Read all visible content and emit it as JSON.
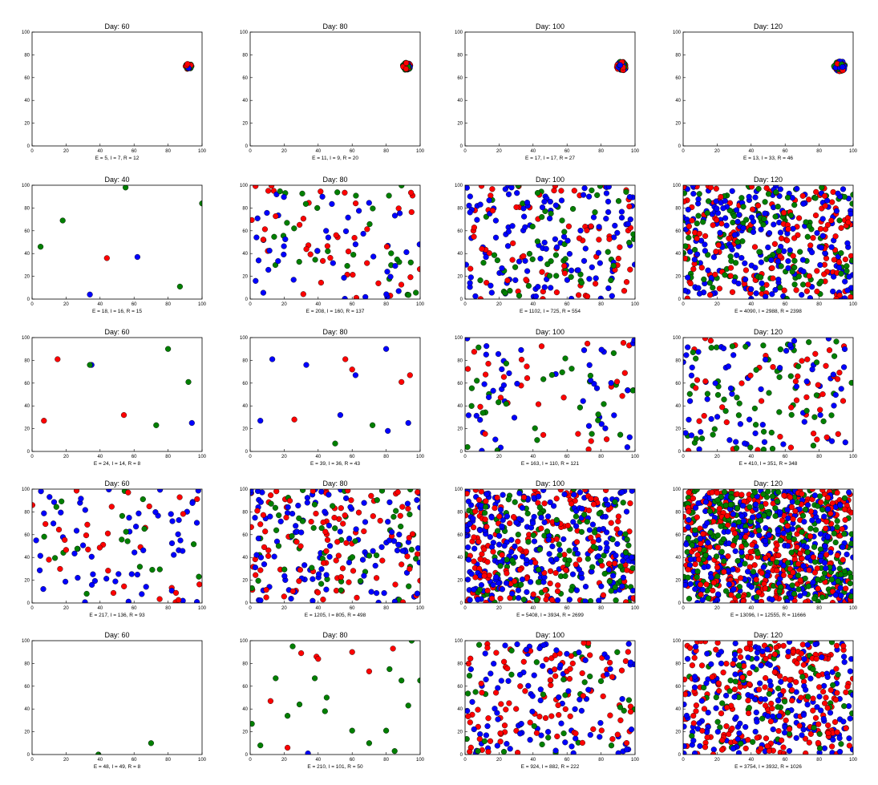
{
  "colors": {
    "exposed": "#0000ff",
    "infected": "#ff0000",
    "recovered": "#007f00",
    "axes": "#000000",
    "background": "#ffffff"
  },
  "chart_data": {
    "type": "scatter",
    "xlim": [
      0,
      100
    ],
    "ylim": [
      0,
      100
    ],
    "x_ticks": [
      0,
      20,
      40,
      60,
      80,
      100
    ],
    "y_ticks": [
      0,
      20,
      40,
      60,
      80,
      100
    ],
    "grid": false,
    "panels": [
      {
        "title": "Day: 60",
        "caption": "E = 5, I = 7, R = 12",
        "counts": {
          "E": 5,
          "I": 7,
          "R": 12
        },
        "density": "tight cluster at (92, 70)"
      },
      {
        "title": "Day: 80",
        "caption": "E = 11, I = 9, R = 20",
        "counts": {
          "E": 11,
          "I": 9,
          "R": 20
        },
        "density": "tight cluster at (92, 70)"
      },
      {
        "title": "Day: 100",
        "caption": "E = 17, I = 17, R = 27",
        "counts": {
          "E": 17,
          "I": 17,
          "R": 27
        },
        "density": "tight cluster at (92, 70)"
      },
      {
        "title": "Day: 120",
        "caption": "E = 13, I = 33, R = 46",
        "counts": {
          "E": 13,
          "I": 33,
          "R": 46
        },
        "density": "tight cluster at (93, 70)"
      },
      {
        "title": "Day: 40",
        "caption": "E = 18, I = 16, R = 15",
        "counts": {
          "E": 18,
          "I": 16,
          "R": 15
        }
      },
      {
        "title": "Day: 80",
        "caption": "E = 208, I = 160, R = 137",
        "counts": {
          "E": 208,
          "I": 160,
          "R": 137
        }
      },
      {
        "title": "Day: 100",
        "caption": "E = 1102, I = 725, R = 554",
        "counts": {
          "E": 1102,
          "I": 725,
          "R": 554
        }
      },
      {
        "title": "Day: 120",
        "caption": "E = 4090, I = 2988, R = 2398",
        "counts": {
          "E": 4090,
          "I": 2988,
          "R": 2398
        }
      },
      {
        "title": "Day: 60",
        "caption": "E = 24, I = 14, R = 8",
        "counts": {
          "E": 24,
          "I": 14,
          "R": 8
        }
      },
      {
        "title": "Day: 80",
        "caption": "E = 39, I = 36, R = 43",
        "counts": {
          "E": 39,
          "I": 36,
          "R": 43
        }
      },
      {
        "title": "Day: 100",
        "caption": "E = 163, I = 110, R = 121",
        "counts": {
          "E": 163,
          "I": 110,
          "R": 121
        }
      },
      {
        "title": "Day: 120",
        "caption": "E = 410, I = 351, R = 348",
        "counts": {
          "E": 410,
          "I": 351,
          "R": 348
        }
      },
      {
        "title": "Day: 60",
        "caption": "E = 217, I = 136, R = 93",
        "counts": {
          "E": 217,
          "I": 136,
          "R": 93
        }
      },
      {
        "title": "Day: 80",
        "caption": "E = 1205, I = 805, R = 498",
        "counts": {
          "E": 1205,
          "I": 805,
          "R": 498
        }
      },
      {
        "title": "Day: 100",
        "caption": "E = 5408, I = 3934, R = 2699",
        "counts": {
          "E": 5408,
          "I": 3934,
          "R": 2699
        }
      },
      {
        "title": "Day: 120",
        "caption": "E = 13096, I = 12555, R = 11666",
        "counts": {
          "E": 13096,
          "I": 12555,
          "R": 11666
        }
      },
      {
        "title": "Day: 60",
        "caption": "E = 48, I = 49, R = 8",
        "counts": {
          "E": 48,
          "I": 49,
          "R": 8
        }
      },
      {
        "title": "Day: 80",
        "caption": "E = 210, I = 101, R = 50",
        "counts": {
          "E": 210,
          "I": 101,
          "R": 50
        }
      },
      {
        "title": "Day: 100",
        "caption": "E = 924, I = 882, R = 222",
        "counts": {
          "E": 924,
          "I": 882,
          "R": 222
        }
      },
      {
        "title": "Day: 120",
        "caption": "E = 3754, I = 3932, R = 1026",
        "counts": {
          "E": 3754,
          "I": 3932,
          "R": 1026
        }
      }
    ],
    "points": {
      "4": [
        {
          "x": 5,
          "y": 46,
          "c": "recovered"
        },
        {
          "x": 18,
          "y": 69,
          "c": "recovered"
        },
        {
          "x": 55,
          "y": 98,
          "c": "recovered"
        },
        {
          "x": 100,
          "y": 84,
          "c": "recovered"
        },
        {
          "x": 44,
          "y": 36,
          "c": "infected"
        },
        {
          "x": 62,
          "y": 37,
          "c": "exposed"
        },
        {
          "x": 34,
          "y": 4,
          "c": "exposed"
        },
        {
          "x": 87,
          "y": 11,
          "c": "recovered"
        }
      ],
      "8": [
        {
          "x": 7,
          "y": 27,
          "c": "infected"
        },
        {
          "x": 15,
          "y": 81,
          "c": "infected"
        },
        {
          "x": 35,
          "y": 76,
          "c": "exposed"
        },
        {
          "x": 34,
          "y": 76,
          "c": "recovered"
        },
        {
          "x": 54,
          "y": 32,
          "c": "infected"
        },
        {
          "x": 80,
          "y": 90,
          "c": "recovered"
        },
        {
          "x": 73,
          "y": 23,
          "c": "recovered"
        },
        {
          "x": 92,
          "y": 61,
          "c": "recovered"
        },
        {
          "x": 94,
          "y": 25,
          "c": "exposed"
        }
      ],
      "9": [
        {
          "x": 6,
          "y": 27,
          "c": "exposed"
        },
        {
          "x": 13,
          "y": 81,
          "c": "exposed"
        },
        {
          "x": 26,
          "y": 28,
          "c": "infected"
        },
        {
          "x": 33,
          "y": 76,
          "c": "exposed"
        },
        {
          "x": 50,
          "y": 7,
          "c": "recovered"
        },
        {
          "x": 53,
          "y": 32,
          "c": "exposed"
        },
        {
          "x": 56,
          "y": 81,
          "c": "infected"
        },
        {
          "x": 60,
          "y": 72,
          "c": "infected"
        },
        {
          "x": 62,
          "y": 67,
          "c": "exposed"
        },
        {
          "x": 72,
          "y": 23,
          "c": "recovered"
        },
        {
          "x": 80,
          "y": 90,
          "c": "exposed"
        },
        {
          "x": 81,
          "y": 18,
          "c": "exposed"
        },
        {
          "x": 89,
          "y": 61,
          "c": "infected"
        },
        {
          "x": 94,
          "y": 67,
          "c": "infected"
        },
        {
          "x": 93,
          "y": 25,
          "c": "exposed"
        }
      ],
      "16": [
        {
          "x": 39,
          "y": 0,
          "c": "recovered"
        },
        {
          "x": 70,
          "y": 10,
          "c": "recovered"
        }
      ],
      "17": [
        {
          "x": 1,
          "y": 27,
          "c": "recovered"
        },
        {
          "x": 6,
          "y": 8,
          "c": "recovered"
        },
        {
          "x": 12,
          "y": 47,
          "c": "infected"
        },
        {
          "x": 15,
          "y": 67,
          "c": "recovered"
        },
        {
          "x": 22,
          "y": 34,
          "c": "recovered"
        },
        {
          "x": 22,
          "y": 6,
          "c": "infected"
        },
        {
          "x": 25,
          "y": 95,
          "c": "recovered"
        },
        {
          "x": 29,
          "y": 44,
          "c": "recovered"
        },
        {
          "x": 30,
          "y": 89,
          "c": "infected"
        },
        {
          "x": 34,
          "y": 1,
          "c": "exposed"
        },
        {
          "x": 38,
          "y": 67,
          "c": "recovered"
        },
        {
          "x": 39,
          "y": 86,
          "c": "infected"
        },
        {
          "x": 40,
          "y": 84,
          "c": "infected"
        },
        {
          "x": 44,
          "y": 38,
          "c": "recovered"
        },
        {
          "x": 45,
          "y": 50,
          "c": "recovered"
        },
        {
          "x": 60,
          "y": 90,
          "c": "infected"
        },
        {
          "x": 60,
          "y": 21,
          "c": "recovered"
        },
        {
          "x": 70,
          "y": 73,
          "c": "infected"
        },
        {
          "x": 70,
          "y": 10,
          "c": "recovered"
        },
        {
          "x": 80,
          "y": 21,
          "c": "recovered"
        },
        {
          "x": 82,
          "y": 75,
          "c": "recovered"
        },
        {
          "x": 84,
          "y": 93,
          "c": "infected"
        },
        {
          "x": 85,
          "y": 3,
          "c": "recovered"
        },
        {
          "x": 89,
          "y": 65,
          "c": "recovered"
        },
        {
          "x": 93,
          "y": 43,
          "c": "recovered"
        },
        {
          "x": 95,
          "y": 100,
          "c": "recovered"
        },
        {
          "x": 100,
          "y": 65,
          "c": "recovered"
        }
      ]
    }
  }
}
